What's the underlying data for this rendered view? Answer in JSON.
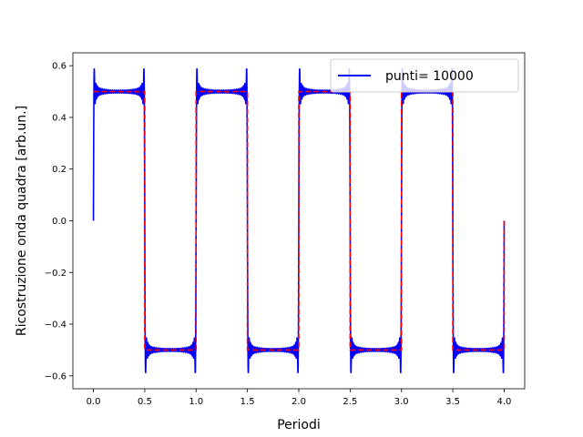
{
  "chart_data": {
    "type": "line",
    "title": "",
    "xlabel": "Periodi",
    "ylabel": "Ricostruzione onda quadra [arb.un.]",
    "xlim": [
      -0.2,
      4.2
    ],
    "ylim": [
      -0.65,
      0.65
    ],
    "xticks": [
      0.0,
      0.5,
      1.0,
      1.5,
      2.0,
      2.5,
      3.0,
      3.5,
      4.0
    ],
    "xtick_labels": [
      "0.0",
      "0.5",
      "1.0",
      "1.5",
      "2.0",
      "2.5",
      "3.0",
      "3.5",
      "4.0"
    ],
    "yticks": [
      -0.6,
      -0.4,
      -0.2,
      0.0,
      0.2,
      0.4,
      0.6
    ],
    "ytick_labels": [
      "−0.6",
      "−0.4",
      "−0.2",
      "0.0",
      "0.2",
      "0.4",
      "0.6"
    ],
    "grid": false,
    "legend_position": "top-right",
    "series": [
      {
        "name": "punti= 10000",
        "style": "solid",
        "color": "#0000ff",
        "description": "Fourier reconstruction of square wave with Gibbs overshoot",
        "x_range": [
          0.0,
          4.0
        ],
        "amplitude": 0.5,
        "period": 1.0,
        "overshoot_peak": 0.585
      },
      {
        "name": "",
        "style": "dashed",
        "color": "#ff0000",
        "description": "Ideal square wave",
        "x_range": [
          0.0,
          4.0
        ],
        "amplitude": 0.5,
        "period": 1.0
      }
    ]
  }
}
